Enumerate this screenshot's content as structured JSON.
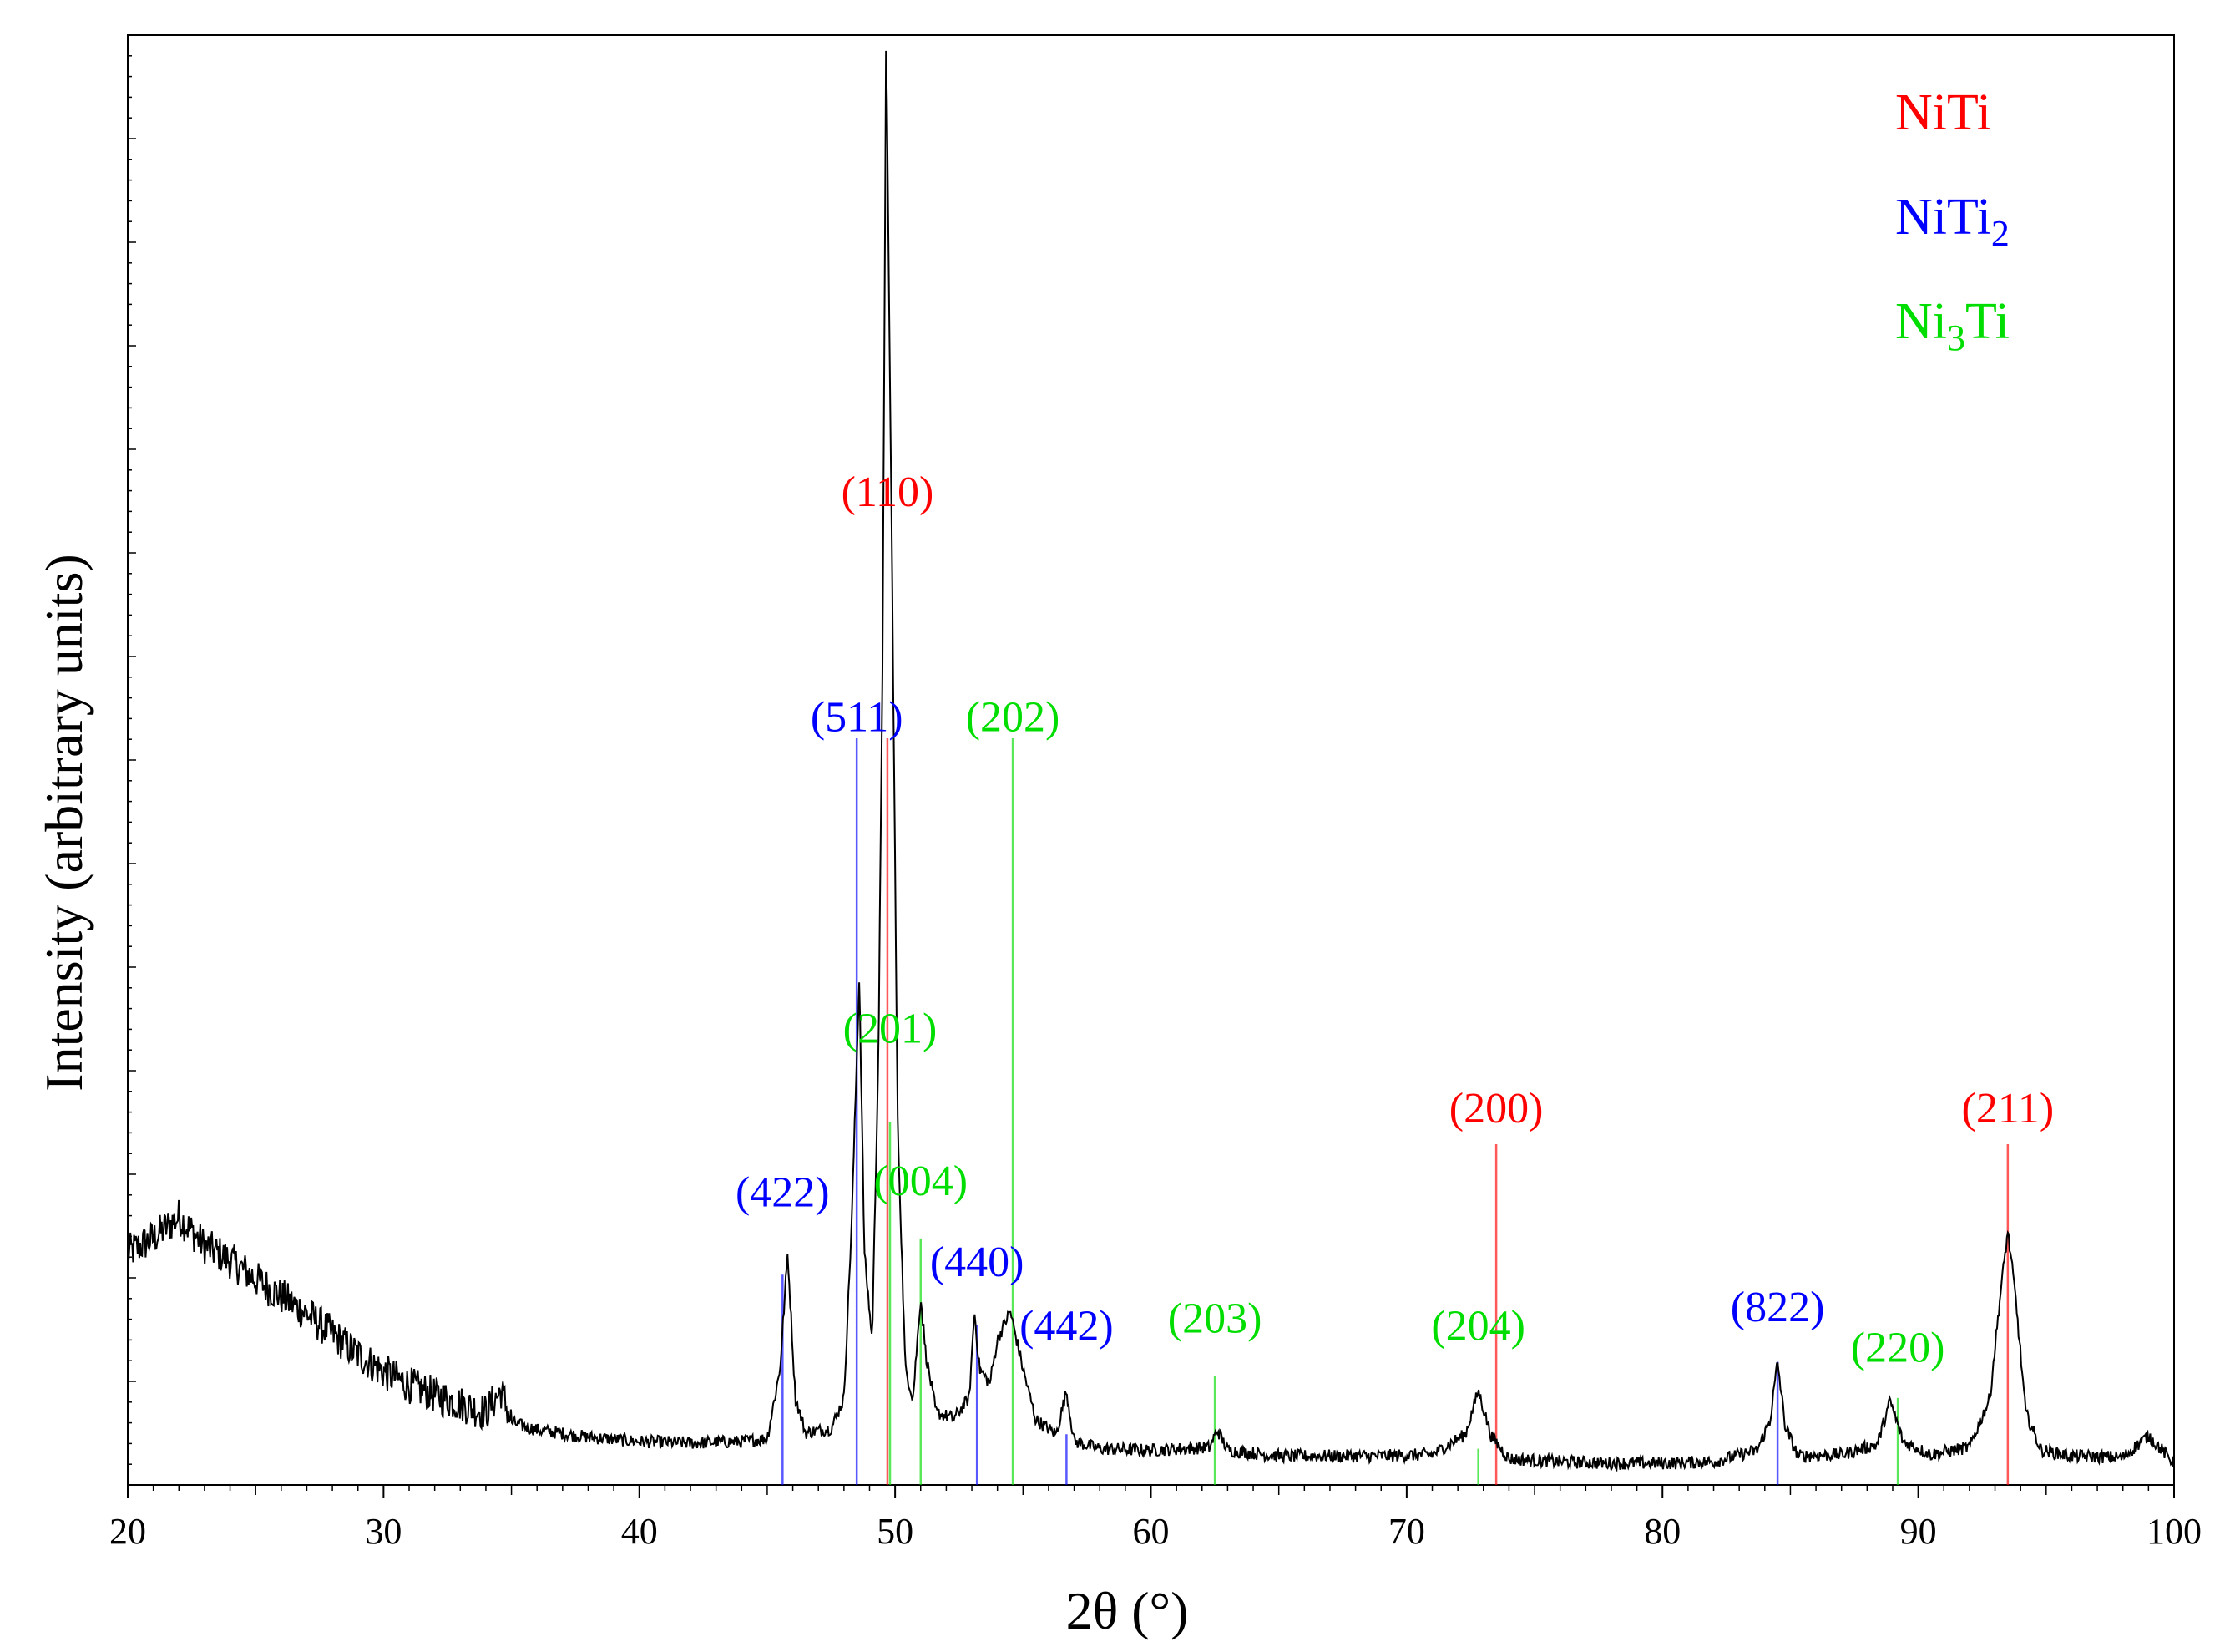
{
  "chart_data": {
    "type": "line",
    "title": "",
    "xlabel": "2θ (°)",
    "ylabel": "Intensity (arbitrary units)",
    "xlim": [
      20,
      100
    ],
    "ylim": [
      0,
      100
    ],
    "x_ticks": [
      "20",
      "30",
      "40",
      "50",
      "60",
      "70",
      "80",
      "90",
      "100"
    ],
    "grid": false,
    "legend": {
      "placement": "top-right",
      "entries": [
        {
          "label": "NiTi",
          "main": "NiTi",
          "sub": "",
          "suffix": "",
          "color": "#ff0000"
        },
        {
          "label": "NiTi2",
          "main": "NiTi",
          "sub": "2",
          "suffix": "",
          "color": "#0000ff"
        },
        {
          "label": "Ni3Ti",
          "main": "Ni",
          "sub": "3",
          "suffix": "Ti",
          "color": "#00dd00"
        }
      ]
    },
    "colors": {
      "NiTi": "#ff0000",
      "NiTi2": "#0000ff",
      "Ni3Ti": "#00dd00",
      "pattern": "#000000"
    },
    "series": [
      {
        "phase": "measured",
        "color": "#000000",
        "points": [
          [
            20,
            16
          ],
          [
            21,
            17
          ],
          [
            22,
            18.5
          ],
          [
            23,
            16.5
          ],
          [
            24,
            15.5
          ],
          [
            25,
            14.2
          ],
          [
            26,
            13
          ],
          [
            27,
            11.8
          ],
          [
            28,
            10.4
          ],
          [
            29,
            9
          ],
          [
            30,
            7.8
          ],
          [
            31,
            6.9
          ],
          [
            32,
            6.2
          ],
          [
            33,
            5.6
          ],
          [
            34,
            5.0
          ],
          [
            34.6,
            6.5
          ],
          [
            35,
            4.3
          ],
          [
            36,
            3.8
          ],
          [
            38,
            3.3
          ],
          [
            40,
            3.0
          ],
          [
            42,
            2.9
          ],
          [
            44,
            3.0
          ],
          [
            45,
            3.2
          ],
          [
            45.5,
            8
          ],
          [
            45.8,
            16
          ],
          [
            46.1,
            6
          ],
          [
            46.5,
            3.6
          ],
          [
            47.5,
            3.9
          ],
          [
            48.0,
            6
          ],
          [
            48.3,
            18
          ],
          [
            48.6,
            35
          ],
          [
            48.8,
            16
          ],
          [
            49.1,
            10
          ],
          [
            49.35,
            30
          ],
          [
            49.5,
            55
          ],
          [
            49.65,
            100
          ],
          [
            49.9,
            60
          ],
          [
            50.1,
            25
          ],
          [
            50.4,
            8
          ],
          [
            50.7,
            6
          ],
          [
            51.0,
            13
          ],
          [
            51.2,
            9
          ],
          [
            51.6,
            5
          ],
          [
            52.3,
            4.6
          ],
          [
            52.9,
            6
          ],
          [
            53.1,
            12
          ],
          [
            53.3,
            8
          ],
          [
            53.7,
            7
          ],
          [
            54.0,
            10
          ],
          [
            54.5,
            12
          ],
          [
            55.0,
            8
          ],
          [
            55.5,
            4.5
          ],
          [
            56.3,
            3.5
          ],
          [
            56.7,
            6.5
          ],
          [
            57.0,
            3.0
          ],
          [
            58,
            2.5
          ],
          [
            60,
            2.4
          ],
          [
            62.3,
            2.6
          ],
          [
            62.6,
            3.8
          ],
          [
            63,
            2.4
          ],
          [
            65,
            2.0
          ],
          [
            67,
            2.0
          ],
          [
            69,
            2.0
          ],
          [
            71,
            2.1
          ],
          [
            72.3,
            3.5
          ],
          [
            72.8,
            6.5
          ],
          [
            73.3,
            3.4
          ],
          [
            74,
            1.8
          ],
          [
            76,
            1.6
          ],
          [
            78,
            1.5
          ],
          [
            80,
            1.5
          ],
          [
            82,
            1.6
          ],
          [
            83.7,
            2.4
          ],
          [
            84.2,
            4.4
          ],
          [
            84.5,
            8.5
          ],
          [
            84.8,
            4.0
          ],
          [
            85.3,
            2.0
          ],
          [
            87,
            2.1
          ],
          [
            88.4,
            2.8
          ],
          [
            88.9,
            5.8
          ],
          [
            89.4,
            3.0
          ],
          [
            90.5,
            2.1
          ],
          [
            92,
            2.6
          ],
          [
            92.8,
            6
          ],
          [
            93.2,
            13
          ],
          [
            93.5,
            17.5
          ],
          [
            93.8,
            13
          ],
          [
            94.2,
            5
          ],
          [
            94.8,
            2.4
          ],
          [
            96,
            2.0
          ],
          [
            98,
            1.9
          ],
          [
            99,
            3.4
          ],
          [
            100,
            1.5
          ]
        ]
      }
    ],
    "reference_lines": [
      {
        "phase": "NiTi2",
        "hkl": "(422)",
        "x": 45.6,
        "height": 14.5,
        "label_y": 19.2
      },
      {
        "phase": "NiTi2",
        "hkl": "(511)",
        "x": 48.5,
        "height": 51.5,
        "label_y": 52.0
      },
      {
        "phase": "NiTi",
        "hkl": "(110)",
        "x": 49.7,
        "height": 51.5,
        "label_y": 67.5
      },
      {
        "phase": "Ni3Ti",
        "hkl": "(201)",
        "x": 49.8,
        "height": 25.0,
        "label_y": 30.5
      },
      {
        "phase": "Ni3Ti",
        "hkl": "(004)",
        "x": 51.0,
        "height": 17.0,
        "label_y": 20.0
      },
      {
        "phase": "NiTi2",
        "hkl": "(440)",
        "x": 53.2,
        "height": 11.0,
        "label_y": 14.4
      },
      {
        "phase": "Ni3Ti",
        "hkl": "(202)",
        "x": 54.6,
        "height": 51.5,
        "label_y": 52.0
      },
      {
        "phase": "NiTi2",
        "hkl": "(442)",
        "x": 56.7,
        "height": 3.5,
        "label_y": 10.0
      },
      {
        "phase": "Ni3Ti",
        "hkl": "(203)",
        "x": 62.5,
        "height": 7.5,
        "label_y": 10.5
      },
      {
        "phase": "Ni3Ti",
        "hkl": "(204)",
        "x": 72.8,
        "height": 2.5,
        "label_y": 10.0
      },
      {
        "phase": "NiTi",
        "hkl": "(200)",
        "x": 73.5,
        "height": 23.5,
        "label_y": 25.0
      },
      {
        "phase": "NiTi2",
        "hkl": "(822)",
        "x": 84.5,
        "height": 8.5,
        "label_y": 11.3
      },
      {
        "phase": "Ni3Ti",
        "hkl": "(220)",
        "x": 89.2,
        "height": 6.0,
        "label_y": 8.5
      },
      {
        "phase": "NiTi",
        "hkl": "(211)",
        "x": 93.5,
        "height": 23.5,
        "label_y": 25.0
      }
    ]
  }
}
